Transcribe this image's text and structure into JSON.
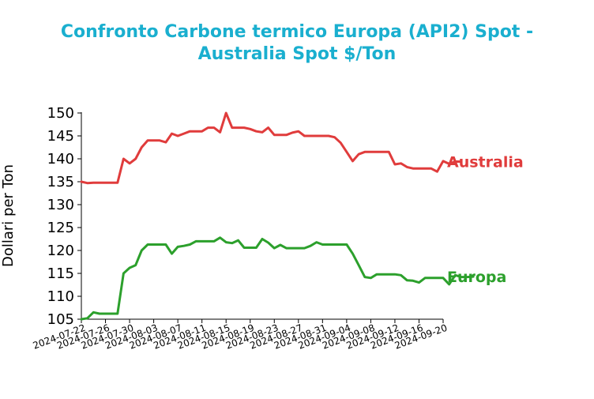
{
  "chart_data": {
    "type": "line",
    "title": "Confronto Carbone termico Europa (API2) Spot -",
    "title_line2": "Australia Spot $/Ton",
    "title_color": "#1aafcf",
    "ylabel": "Dollari per Ton",
    "xlabel": "",
    "ylim": [
      105,
      150
    ],
    "y_ticks": [
      105,
      110,
      115,
      120,
      125,
      130,
      135,
      140,
      145,
      150
    ],
    "x_ticks": [
      "2024-07-22",
      "2024-07-26",
      "2024-07-30",
      "2024-08-03",
      "2024-08-07",
      "2024-08-11",
      "2024-08-15",
      "2024-08-19",
      "2024-08-23",
      "2024-08-27",
      "2024-08-31",
      "2024-09-04",
      "2024-09-08",
      "2024-09-12",
      "2024-09-16",
      "2024-09-20"
    ],
    "x_start": "2024-07-22",
    "x_end": "2024-09-20",
    "grid": false,
    "series": [
      {
        "name": "Australia",
        "color": "#e03c3c",
        "points": [
          [
            "2024-07-22",
            135.0
          ],
          [
            "2024-07-23",
            134.7
          ],
          [
            "2024-07-24",
            134.8
          ],
          [
            "2024-07-25",
            134.8
          ],
          [
            "2024-07-26",
            134.8
          ],
          [
            "2024-07-27",
            134.8
          ],
          [
            "2024-07-28",
            134.8
          ],
          [
            "2024-07-29",
            140.0
          ],
          [
            "2024-07-30",
            139.0
          ],
          [
            "2024-07-31",
            140.0
          ],
          [
            "2024-08-01",
            142.5
          ],
          [
            "2024-08-02",
            144.0
          ],
          [
            "2024-08-03",
            144.0
          ],
          [
            "2024-08-04",
            144.0
          ],
          [
            "2024-08-05",
            143.6
          ],
          [
            "2024-08-06",
            145.5
          ],
          [
            "2024-08-07",
            145.0
          ],
          [
            "2024-08-08",
            145.5
          ],
          [
            "2024-08-09",
            146.0
          ],
          [
            "2024-08-10",
            146.0
          ],
          [
            "2024-08-11",
            146.0
          ],
          [
            "2024-08-12",
            146.8
          ],
          [
            "2024-08-13",
            146.8
          ],
          [
            "2024-08-14",
            145.8
          ],
          [
            "2024-08-15",
            150.0
          ],
          [
            "2024-08-16",
            146.8
          ],
          [
            "2024-08-17",
            146.8
          ],
          [
            "2024-08-18",
            146.8
          ],
          [
            "2024-08-19",
            146.5
          ],
          [
            "2024-08-20",
            146.0
          ],
          [
            "2024-08-21",
            145.8
          ],
          [
            "2024-08-22",
            146.8
          ],
          [
            "2024-08-23",
            145.2
          ],
          [
            "2024-08-24",
            145.2
          ],
          [
            "2024-08-25",
            145.2
          ],
          [
            "2024-08-26",
            145.7
          ],
          [
            "2024-08-27",
            146.0
          ],
          [
            "2024-08-28",
            145.0
          ],
          [
            "2024-08-29",
            145.0
          ],
          [
            "2024-08-30",
            145.0
          ],
          [
            "2024-08-31",
            145.0
          ],
          [
            "2024-09-01",
            145.0
          ],
          [
            "2024-09-02",
            144.7
          ],
          [
            "2024-09-03",
            143.5
          ],
          [
            "2024-09-04",
            141.5
          ],
          [
            "2024-09-05",
            139.5
          ],
          [
            "2024-09-06",
            141.0
          ],
          [
            "2024-09-07",
            141.5
          ],
          [
            "2024-09-08",
            141.5
          ],
          [
            "2024-09-09",
            141.5
          ],
          [
            "2024-09-10",
            141.5
          ],
          [
            "2024-09-11",
            141.5
          ],
          [
            "2024-09-12",
            138.8
          ],
          [
            "2024-09-13",
            139.0
          ],
          [
            "2024-09-14",
            138.2
          ],
          [
            "2024-09-15",
            137.9
          ],
          [
            "2024-09-16",
            137.9
          ],
          [
            "2024-09-17",
            137.9
          ],
          [
            "2024-09-18",
            137.9
          ],
          [
            "2024-09-19",
            137.2
          ],
          [
            "2024-09-20",
            139.5
          ],
          [
            "2024-09-21",
            138.9
          ],
          [
            "2024-09-22",
            139.4
          ],
          [
            "2024-09-23",
            139.4
          ]
        ]
      },
      {
        "name": "Europa",
        "color": "#2ca02c",
        "points": [
          [
            "2024-07-22",
            105.0
          ],
          [
            "2024-07-23",
            105.2
          ],
          [
            "2024-07-24",
            106.5
          ],
          [
            "2024-07-25",
            106.2
          ],
          [
            "2024-07-26",
            106.2
          ],
          [
            "2024-07-27",
            106.2
          ],
          [
            "2024-07-28",
            106.2
          ],
          [
            "2024-07-29",
            115.0
          ],
          [
            "2024-07-30",
            116.2
          ],
          [
            "2024-07-31",
            116.8
          ],
          [
            "2024-08-01",
            120.0
          ],
          [
            "2024-08-02",
            121.3
          ],
          [
            "2024-08-03",
            121.3
          ],
          [
            "2024-08-04",
            121.3
          ],
          [
            "2024-08-05",
            121.3
          ],
          [
            "2024-08-06",
            119.3
          ],
          [
            "2024-08-07",
            120.8
          ],
          [
            "2024-08-08",
            121.0
          ],
          [
            "2024-08-09",
            121.3
          ],
          [
            "2024-08-10",
            122.0
          ],
          [
            "2024-08-11",
            122.0
          ],
          [
            "2024-08-12",
            122.0
          ],
          [
            "2024-08-13",
            122.0
          ],
          [
            "2024-08-14",
            122.8
          ],
          [
            "2024-08-15",
            121.8
          ],
          [
            "2024-08-16",
            121.6
          ],
          [
            "2024-08-17",
            122.2
          ],
          [
            "2024-08-18",
            120.6
          ],
          [
            "2024-08-19",
            120.6
          ],
          [
            "2024-08-20",
            120.6
          ],
          [
            "2024-08-21",
            122.5
          ],
          [
            "2024-08-22",
            121.7
          ],
          [
            "2024-08-23",
            120.5
          ],
          [
            "2024-08-24",
            121.2
          ],
          [
            "2024-08-25",
            120.5
          ],
          [
            "2024-08-26",
            120.5
          ],
          [
            "2024-08-27",
            120.5
          ],
          [
            "2024-08-28",
            120.5
          ],
          [
            "2024-08-29",
            121.0
          ],
          [
            "2024-08-30",
            121.8
          ],
          [
            "2024-08-31",
            121.3
          ],
          [
            "2024-09-01",
            121.3
          ],
          [
            "2024-09-02",
            121.3
          ],
          [
            "2024-09-03",
            121.3
          ],
          [
            "2024-09-04",
            121.3
          ],
          [
            "2024-09-05",
            119.3
          ],
          [
            "2024-09-06",
            116.8
          ],
          [
            "2024-09-07",
            114.2
          ],
          [
            "2024-09-08",
            114.0
          ],
          [
            "2024-09-09",
            114.8
          ],
          [
            "2024-09-10",
            114.8
          ],
          [
            "2024-09-11",
            114.8
          ],
          [
            "2024-09-12",
            114.8
          ],
          [
            "2024-09-13",
            114.6
          ],
          [
            "2024-09-14",
            113.5
          ],
          [
            "2024-09-15",
            113.4
          ],
          [
            "2024-09-16",
            113.0
          ],
          [
            "2024-09-17",
            114.0
          ],
          [
            "2024-09-18",
            114.0
          ],
          [
            "2024-09-19",
            114.0
          ],
          [
            "2024-09-20",
            114.0
          ],
          [
            "2024-09-21",
            112.6
          ],
          [
            "2024-09-22",
            114.6
          ],
          [
            "2024-09-23",
            114.2
          ],
          [
            "2024-09-24",
            114.2
          ],
          [
            "2024-09-25",
            114.3
          ]
        ]
      }
    ]
  }
}
